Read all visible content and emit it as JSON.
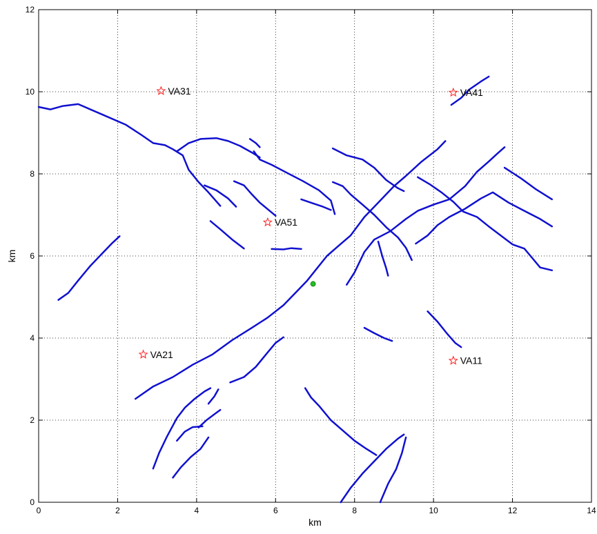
{
  "chart_data": {
    "type": "line",
    "title": "",
    "xlabel": "km",
    "ylabel": "km",
    "xlim": [
      0,
      14
    ],
    "ylim": [
      0,
      12
    ],
    "xticks": [
      0,
      2,
      4,
      6,
      8,
      10,
      12,
      14
    ],
    "yticks": [
      0,
      2,
      4,
      6,
      8,
      10,
      12
    ],
    "grid": true,
    "grid_style": "dotted",
    "colors": {
      "faults": "#1010d0",
      "stations": "#ff2020",
      "point": "#22c022"
    },
    "faults": [
      [
        [
          0,
          9.63
        ],
        [
          0.3,
          9.57
        ],
        [
          0.6,
          9.65
        ],
        [
          1.0,
          9.7
        ],
        [
          1.6,
          9.45
        ],
        [
          2.2,
          9.2
        ],
        [
          2.6,
          8.95
        ],
        [
          2.9,
          8.75
        ],
        [
          3.2,
          8.7
        ],
        [
          3.4,
          8.6
        ],
        [
          3.65,
          8.45
        ],
        [
          3.8,
          8.1
        ],
        [
          4.05,
          7.8
        ],
        [
          4.3,
          7.55
        ],
        [
          4.6,
          7.22
        ]
      ],
      [
        [
          3.5,
          8.55
        ],
        [
          3.8,
          8.75
        ],
        [
          4.1,
          8.85
        ],
        [
          4.5,
          8.87
        ],
        [
          4.8,
          8.8
        ],
        [
          5.1,
          8.68
        ],
        [
          5.4,
          8.52
        ],
        [
          5.6,
          8.4
        ]
      ],
      [
        [
          5.35,
          8.85
        ],
        [
          5.5,
          8.75
        ],
        [
          5.6,
          8.65
        ]
      ],
      [
        [
          5.45,
          8.55
        ],
        [
          5.6,
          8.35
        ],
        [
          5.9,
          8.22
        ],
        [
          6.3,
          8.02
        ],
        [
          6.7,
          7.82
        ],
        [
          7.1,
          7.6
        ],
        [
          7.4,
          7.35
        ],
        [
          7.5,
          7.02
        ]
      ],
      [
        [
          4.2,
          7.72
        ],
        [
          4.5,
          7.6
        ],
        [
          4.8,
          7.4
        ],
        [
          5.0,
          7.2
        ]
      ],
      [
        [
          4.95,
          7.82
        ],
        [
          5.2,
          7.72
        ],
        [
          5.4,
          7.5
        ],
        [
          5.6,
          7.3
        ],
        [
          5.85,
          7.1
        ],
        [
          6.0,
          6.98
        ]
      ],
      [
        [
          4.35,
          6.85
        ],
        [
          4.6,
          6.65
        ],
        [
          4.9,
          6.4
        ],
        [
          5.2,
          6.18
        ]
      ],
      [
        [
          5.9,
          6.17
        ],
        [
          6.2,
          6.16
        ],
        [
          6.4,
          6.19
        ],
        [
          6.65,
          6.17
        ]
      ],
      [
        [
          6.65,
          7.38
        ],
        [
          6.95,
          7.28
        ],
        [
          7.2,
          7.2
        ],
        [
          7.4,
          7.12
        ]
      ],
      [
        [
          7.45,
          8.62
        ],
        [
          7.8,
          8.45
        ],
        [
          8.2,
          8.35
        ],
        [
          8.5,
          8.15
        ],
        [
          8.8,
          7.85
        ],
        [
          9.1,
          7.65
        ],
        [
          9.25,
          7.58
        ]
      ],
      [
        [
          7.45,
          7.8
        ],
        [
          7.7,
          7.7
        ],
        [
          7.9,
          7.5
        ],
        [
          8.2,
          7.25
        ],
        [
          8.5,
          7.0
        ],
        [
          8.8,
          6.7
        ],
        [
          9.1,
          6.45
        ],
        [
          9.3,
          6.2
        ],
        [
          9.45,
          5.9
        ]
      ],
      [
        [
          2.45,
          2.52
        ],
        [
          2.9,
          2.82
        ],
        [
          3.4,
          3.05
        ],
        [
          3.9,
          3.35
        ],
        [
          4.4,
          3.6
        ],
        [
          4.9,
          3.95
        ],
        [
          5.4,
          4.25
        ],
        [
          5.8,
          4.5
        ],
        [
          6.2,
          4.8
        ],
        [
          6.5,
          5.1
        ],
        [
          6.8,
          5.4
        ],
        [
          7.05,
          5.7
        ],
        [
          7.3,
          6.0
        ],
        [
          7.6,
          6.25
        ],
        [
          7.9,
          6.5
        ],
        [
          8.25,
          6.95
        ],
        [
          8.6,
          7.3
        ],
        [
          9.0,
          7.7
        ],
        [
          9.3,
          7.95
        ],
        [
          9.7,
          8.3
        ],
        [
          10.1,
          8.6
        ],
        [
          10.3,
          8.8
        ]
      ],
      [
        [
          7.8,
          5.3
        ],
        [
          8.0,
          5.6
        ],
        [
          8.25,
          6.1
        ],
        [
          8.5,
          6.4
        ],
        [
          8.9,
          6.6
        ],
        [
          9.3,
          6.9
        ],
        [
          9.6,
          7.1
        ],
        [
          10.0,
          7.25
        ],
        [
          10.4,
          7.38
        ],
        [
          10.8,
          7.7
        ],
        [
          11.1,
          8.05
        ],
        [
          11.4,
          8.3
        ],
        [
          11.6,
          8.48
        ],
        [
          11.8,
          8.65
        ]
      ],
      [
        [
          8.6,
          6.35
        ],
        [
          8.7,
          6.0
        ],
        [
          8.8,
          5.7
        ],
        [
          8.85,
          5.52
        ]
      ],
      [
        [
          9.55,
          6.3
        ],
        [
          9.85,
          6.5
        ],
        [
          10.1,
          6.75
        ],
        [
          10.4,
          6.95
        ],
        [
          10.8,
          7.15
        ],
        [
          11.2,
          7.4
        ],
        [
          11.5,
          7.55
        ],
        [
          11.9,
          7.3
        ],
        [
          12.3,
          7.1
        ],
        [
          12.7,
          6.9
        ],
        [
          13.0,
          6.72
        ]
      ],
      [
        [
          9.6,
          7.92
        ],
        [
          9.9,
          7.75
        ],
        [
          10.2,
          7.55
        ],
        [
          10.5,
          7.32
        ],
        [
          10.75,
          7.08
        ],
        [
          11.1,
          6.95
        ],
        [
          11.4,
          6.72
        ],
        [
          11.7,
          6.5
        ],
        [
          12.0,
          6.28
        ],
        [
          12.3,
          6.18
        ],
        [
          12.5,
          5.95
        ],
        [
          12.7,
          5.72
        ],
        [
          13.0,
          5.65
        ]
      ],
      [
        [
          11.8,
          8.15
        ],
        [
          12.2,
          7.9
        ],
        [
          12.6,
          7.62
        ],
        [
          13.0,
          7.38
        ]
      ],
      [
        [
          10.45,
          9.68
        ],
        [
          10.7,
          9.85
        ],
        [
          10.9,
          10.05
        ],
        [
          11.2,
          10.25
        ],
        [
          11.4,
          10.37
        ]
      ],
      [
        [
          9.85,
          4.65
        ],
        [
          10.1,
          4.4
        ],
        [
          10.35,
          4.1
        ],
        [
          10.55,
          3.88
        ],
        [
          10.7,
          3.78
        ]
      ],
      [
        [
          8.25,
          4.25
        ],
        [
          8.5,
          4.12
        ],
        [
          8.75,
          4.0
        ],
        [
          8.95,
          3.93
        ]
      ],
      [
        [
          6.75,
          2.78
        ],
        [
          6.9,
          2.55
        ],
        [
          7.1,
          2.35
        ],
        [
          7.4,
          2.0
        ],
        [
          7.7,
          1.75
        ],
        [
          8.0,
          1.5
        ],
        [
          8.3,
          1.3
        ],
        [
          8.55,
          1.15
        ]
      ],
      [
        [
          7.65,
          0
        ],
        [
          7.9,
          0.35
        ],
        [
          8.2,
          0.7
        ],
        [
          8.5,
          1.0
        ],
        [
          8.8,
          1.3
        ],
        [
          9.1,
          1.55
        ],
        [
          9.25,
          1.65
        ]
      ],
      [
        [
          8.65,
          0
        ],
        [
          8.85,
          0.45
        ],
        [
          9.05,
          0.8
        ],
        [
          9.2,
          1.2
        ],
        [
          9.3,
          1.58
        ]
      ],
      [
        [
          4.85,
          2.92
        ],
        [
          5.2,
          3.05
        ],
        [
          5.5,
          3.3
        ],
        [
          5.8,
          3.65
        ],
        [
          6.0,
          3.88
        ],
        [
          6.2,
          4.02
        ]
      ],
      [
        [
          2.9,
          0.82
        ],
        [
          3.05,
          1.2
        ],
        [
          3.25,
          1.6
        ],
        [
          3.5,
          2.05
        ],
        [
          3.7,
          2.3
        ],
        [
          3.95,
          2.52
        ],
        [
          4.2,
          2.7
        ],
        [
          4.35,
          2.78
        ]
      ],
      [
        [
          3.5,
          1.5
        ],
        [
          3.7,
          1.72
        ],
        [
          3.9,
          1.83
        ],
        [
          4.15,
          1.85
        ]
      ],
      [
        [
          4.05,
          1.82
        ],
        [
          4.25,
          2.0
        ],
        [
          4.5,
          2.18
        ],
        [
          4.6,
          2.25
        ]
      ],
      [
        [
          4.3,
          2.4
        ],
        [
          4.45,
          2.58
        ],
        [
          4.55,
          2.75
        ]
      ],
      [
        [
          3.4,
          0.6
        ],
        [
          3.6,
          0.85
        ],
        [
          3.85,
          1.1
        ],
        [
          4.1,
          1.3
        ],
        [
          4.3,
          1.58
        ]
      ],
      [
        [
          0.5,
          4.93
        ],
        [
          0.75,
          5.1
        ],
        [
          1.0,
          5.4
        ],
        [
          1.3,
          5.75
        ],
        [
          1.6,
          6.05
        ],
        [
          1.85,
          6.3
        ],
        [
          2.05,
          6.48
        ]
      ]
    ],
    "stations": [
      {
        "name": "VA31",
        "x": 3.1,
        "y": 10.02
      },
      {
        "name": "VA41",
        "x": 10.5,
        "y": 9.98
      },
      {
        "name": "VA51",
        "x": 5.8,
        "y": 6.82
      },
      {
        "name": "VA21",
        "x": 2.65,
        "y": 3.6
      },
      {
        "name": "VA11",
        "x": 10.5,
        "y": 3.45
      }
    ],
    "point": {
      "x": 6.95,
      "y": 5.32
    }
  }
}
